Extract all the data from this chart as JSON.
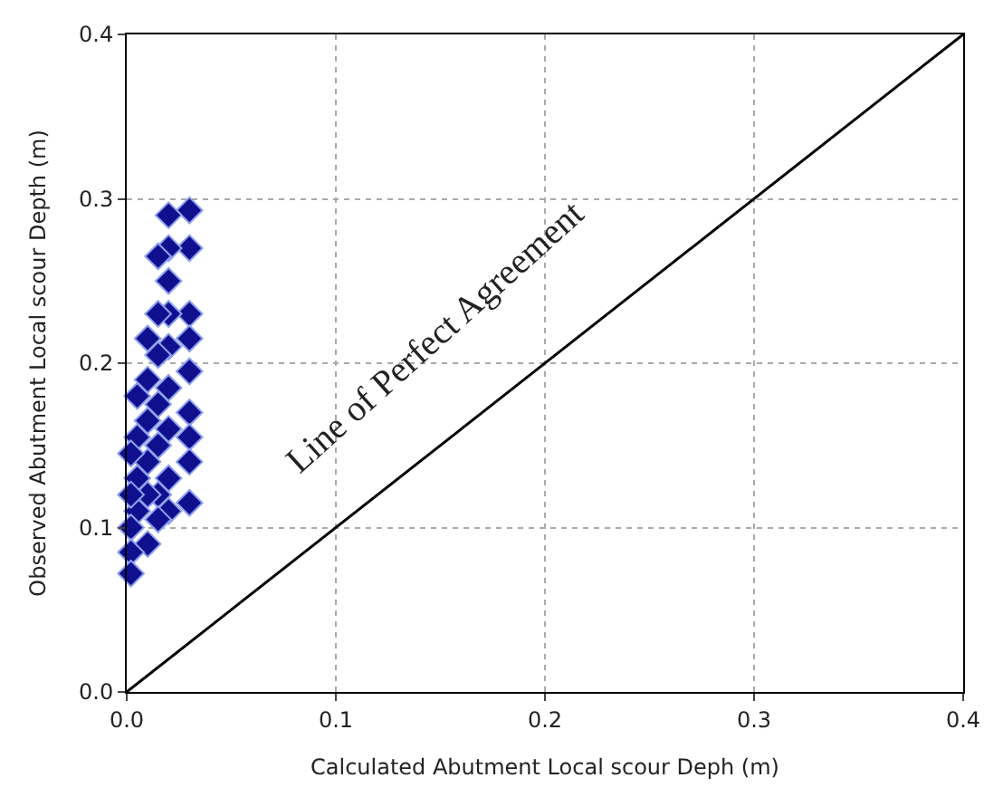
{
  "chart_data": {
    "type": "scatter",
    "xlabel": "Calculated Abutment Local scour Deph (m)",
    "ylabel": "Observed Abutment Local scour Depth (m)",
    "series": [
      {
        "color": "#10108f",
        "marker": "diamond",
        "x": [
          0.03,
          0.03,
          0.03,
          0.03,
          0.03,
          0.03,
          0.03,
          0.03,
          0.03,
          0.02,
          0.02,
          0.02,
          0.02,
          0.02,
          0.02,
          0.02,
          0.02,
          0.02,
          0.015,
          0.015,
          0.015,
          0.015,
          0.015,
          0.015,
          0.015,
          0.01,
          0.01,
          0.01,
          0.01,
          0.01,
          0.01,
          0.005,
          0.005,
          0.005,
          0.005,
          0.002,
          0.002,
          0.002,
          0.002,
          0.002
        ],
        "values": [
          0.293,
          0.27,
          0.23,
          0.215,
          0.195,
          0.17,
          0.155,
          0.14,
          0.115,
          0.29,
          0.27,
          0.25,
          0.23,
          0.21,
          0.185,
          0.16,
          0.13,
          0.11,
          0.265,
          0.23,
          0.205,
          0.175,
          0.15,
          0.12,
          0.105,
          0.215,
          0.19,
          0.165,
          0.14,
          0.12,
          0.09,
          0.18,
          0.155,
          0.13,
          0.11,
          0.145,
          0.12,
          0.1,
          0.085,
          0.072
        ]
      },
      {
        "type": "line",
        "color": "#000000",
        "marker": "none",
        "line_style": "solid",
        "x": [
          0,
          0.4
        ],
        "values": [
          0,
          0.4
        ]
      }
    ],
    "annotations": [
      "Line of Perfect Agreement"
    ],
    "xlim": [
      0,
      0.4
    ],
    "ylim": [
      0,
      0.4
    ],
    "xticks": [
      {
        "value": 0,
        "label": "0.0"
      },
      0.1,
      0.2,
      0.3,
      0.4
    ],
    "yticks": [
      {
        "value": 0,
        "label": "0.0"
      },
      0.1,
      0.2,
      0.3,
      0.4
    ],
    "grid": true
  }
}
